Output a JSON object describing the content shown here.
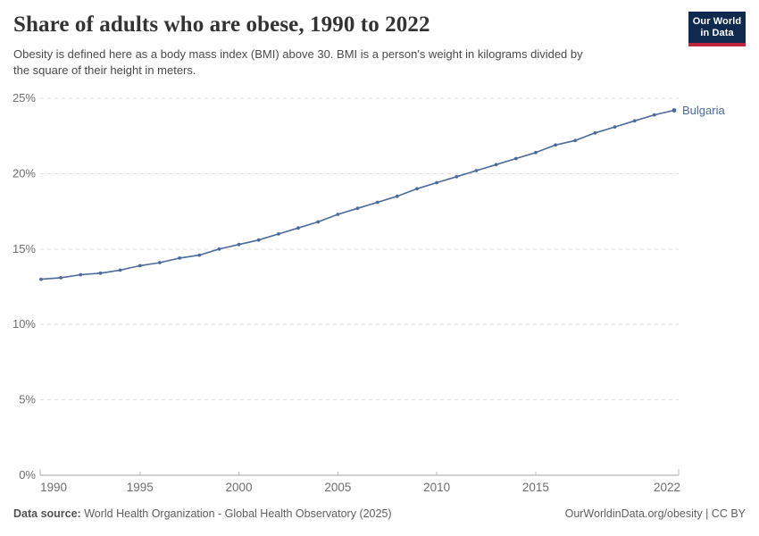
{
  "header": {
    "subtitle_lines": [
      "Obesity is defined here as a body mass index (BMI) above 30. BMI is a person's weight in kilograms divided by",
      "the square of their height in meters."
    ],
    "logo": {
      "line1": "Our World",
      "line2": "in Data",
      "background_color": "#0f2a4e",
      "accent_color": "#c0243c"
    }
  },
  "chart_data": {
    "type": "line",
    "title": "Share of adults who are obese, 1990 to 2022",
    "entity": "Bulgaria",
    "unit": "%",
    "x": [
      1990,
      1991,
      1992,
      1993,
      1994,
      1995,
      1996,
      1997,
      1998,
      1999,
      2000,
      2001,
      2002,
      2003,
      2004,
      2005,
      2006,
      2007,
      2008,
      2009,
      2010,
      2011,
      2012,
      2013,
      2014,
      2015,
      2016,
      2017,
      2018,
      2019,
      2020,
      2021,
      2022
    ],
    "series": [
      {
        "name": "Bulgaria",
        "values": [
          13.0,
          13.1,
          13.3,
          13.4,
          13.6,
          13.9,
          14.1,
          14.4,
          14.6,
          15.0,
          15.3,
          15.6,
          16.0,
          16.4,
          16.8,
          17.3,
          17.7,
          18.1,
          18.5,
          19.0,
          19.4,
          19.8,
          20.2,
          20.6,
          21.0,
          21.4,
          21.9,
          22.2,
          22.7,
          23.1,
          23.5,
          23.9,
          24.2
        ]
      }
    ],
    "xlim": [
      1990,
      2022
    ],
    "ylim": [
      0,
      25
    ],
    "xticks": [
      1990,
      1995,
      2000,
      2005,
      2010,
      2015,
      2022
    ],
    "xtick_labels": [
      "1990",
      "1995",
      "2000",
      "2005",
      "2010",
      "2015",
      "2022"
    ],
    "yticks": [
      0,
      5,
      10,
      15,
      20,
      25
    ],
    "ytick_labels": [
      "0%",
      "5%",
      "10%",
      "15%",
      "20%",
      "25%"
    ],
    "grid": "horizontal dashed gridlines, markers on every yearly data point",
    "legend": "entity label at end of line",
    "colors": {
      "line": "#4C6A9C",
      "entity_label": "#4C6A9C",
      "axis_text": "#6e6e6e",
      "gridline": "#dcdcdc",
      "axis_line": "#a0a0a0"
    }
  },
  "footer": {
    "source_label": "Data source:",
    "source_text": " World Health Organization - Global Health Observatory (2025)",
    "credit": "OurWorldinData.org/obesity | CC BY"
  }
}
